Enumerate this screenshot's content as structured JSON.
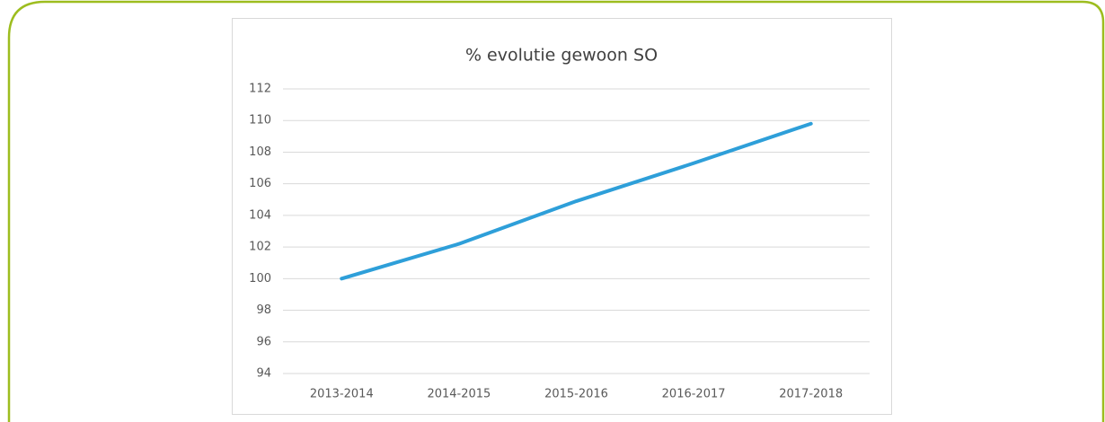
{
  "chart_data": {
    "type": "line",
    "title": "% evolutie gewoon SO",
    "categories": [
      "2013-2014",
      "2014-2015",
      "2015-2016",
      "2016-2017",
      "2017-2018"
    ],
    "series": [
      {
        "name": "% evolutie gewoon SO",
        "color": "#2e9fd9",
        "values": [
          100,
          102.2,
          104.9,
          107.3,
          109.8
        ]
      }
    ],
    "ylim": [
      94,
      112
    ],
    "yticks": [
      94,
      96,
      98,
      100,
      102,
      104,
      106,
      108,
      110,
      112
    ],
    "grid": true
  }
}
